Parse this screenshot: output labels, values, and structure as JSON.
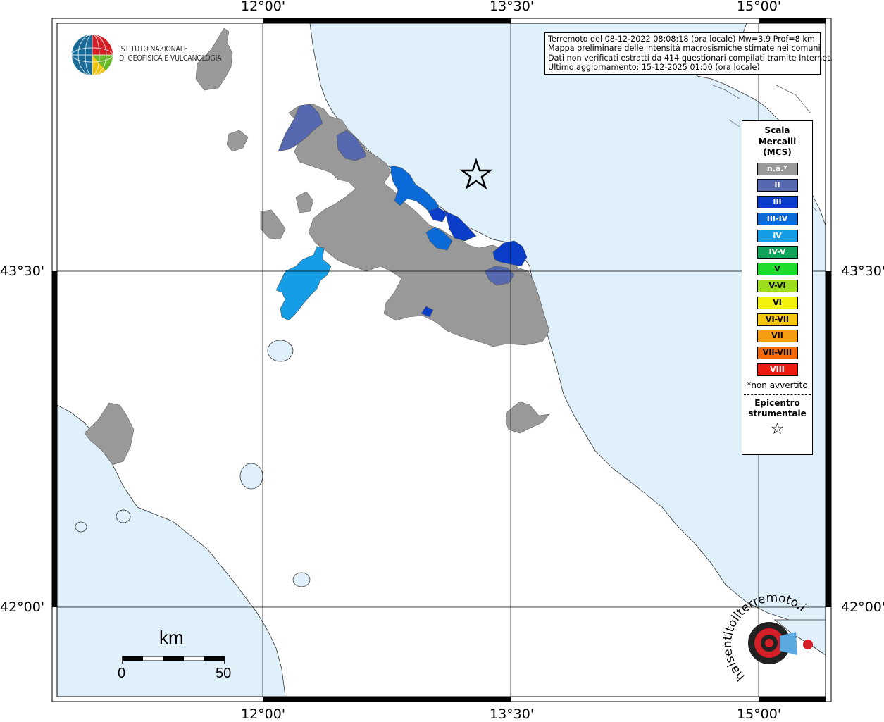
{
  "info": {
    "line1": "Terremoto del 08-12-2022 08:08:18 (ora locale) Mw=3.9 Prof=8 km",
    "line2": "Mappa preliminare delle intensità macrosismiche stimate nei comuni",
    "line3": "Dati non verificati estratti da 414 questionari compilati tramite Internet.",
    "line4": "Ultimo aggiornamento: 15-12-2025 01:50 (ora locale)"
  },
  "coords": {
    "top": [
      "12°00'",
      "13°30'",
      "15°00'"
    ],
    "bottom": [
      "12°00'",
      "13°30'",
      "15°00'"
    ],
    "left": [
      "43°30'",
      "42°00'"
    ],
    "right": [
      "43°30'",
      "42°00'"
    ]
  },
  "logo": {
    "line1": "ISTITUTO NAZIONALE",
    "line2": "DI GEOFISICA E VULCANOLOGIA"
  },
  "legend": {
    "title1": "Scala",
    "title2": "Mercalli",
    "title3": "(MCS)",
    "items": [
      {
        "label": "n.a.*",
        "color": "#999999"
      },
      {
        "label": "II",
        "color": "#5568b0"
      },
      {
        "label": "III",
        "color": "#0a3ec9"
      },
      {
        "label": "III-IV",
        "color": "#0a6bd8"
      },
      {
        "label": "IV",
        "color": "#159ee6"
      },
      {
        "label": "IV-V",
        "color": "#0ea55a"
      },
      {
        "label": "V",
        "color": "#1ddc2a"
      },
      {
        "label": "V-VI",
        "color": "#9ddd1f"
      },
      {
        "label": "VI",
        "color": "#f2f20c"
      },
      {
        "label": "VI-VII",
        "color": "#f5c710"
      },
      {
        "label": "VII",
        "color": "#f59e10"
      },
      {
        "label": "VII-VIII",
        "color": "#f06a10"
      },
      {
        "label": "VIII",
        "color": "#ef1a10"
      }
    ],
    "note": "*non avvertito",
    "epi1": "Epicentro",
    "epi2": "strumentale",
    "epi_star": "☆"
  },
  "scale": {
    "unit": "km",
    "min": "0",
    "max": "50"
  },
  "colors": {
    "sea": "#e0f0fb",
    "land": "#ffffff",
    "na": "#999999"
  },
  "badge_text": "haisentitoilterremoto.it  •WWW•"
}
